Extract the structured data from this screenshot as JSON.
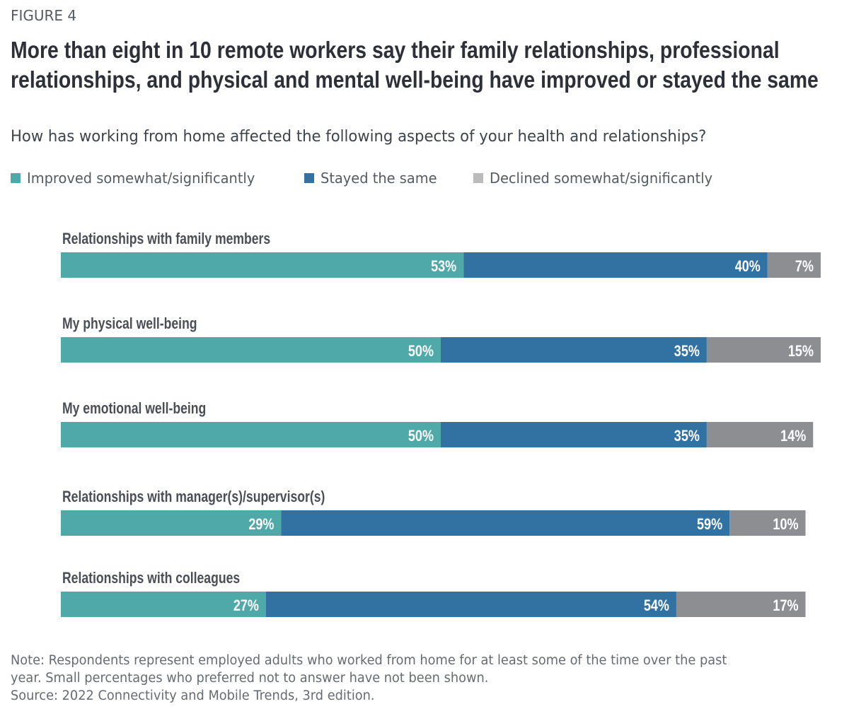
{
  "figure_label": "FIGURE 4",
  "title": "More than eight in 10 remote workers say their family relationships, professional relationships, and physical and mental well-being have improved or stayed the same",
  "subtitle": "How has working from home affected the following aspects of your health and relationships?",
  "legend": [
    {
      "label": "Improved somewhat/significantly",
      "color": "#4fa9a9"
    },
    {
      "label": "Stayed the same",
      "color": "#3272a2"
    },
    {
      "label": "Declined somewhat/significantly",
      "color": "#8c8e92"
    }
  ],
  "legend_swatch_colors": [
    "#4fa9a9",
    "#3272a2",
    "#bbbbbb"
  ],
  "chart_data": {
    "type": "bar",
    "orientation": "horizontal",
    "stacked": true,
    "categories": [
      "Relationships with family members",
      "My physical well-being",
      "My emotional well-being",
      "Relationships with manager(s)/supervisor(s)",
      "Relationships with colleagues"
    ],
    "series": [
      {
        "name": "Improved somewhat/significantly",
        "color": "#4fa9a9",
        "values": [
          53,
          50,
          50,
          29,
          27
        ]
      },
      {
        "name": "Stayed the same",
        "color": "#3272a2",
        "values": [
          40,
          35,
          35,
          59,
          54
        ]
      },
      {
        "name": "Declined somewhat/significantly",
        "color": "#8c8e92",
        "values": [
          7,
          15,
          14,
          10,
          17
        ]
      }
    ],
    "value_suffix": "%",
    "xlim": [
      0,
      100
    ],
    "grid": false,
    "legend_position": "top-left",
    "title": "More than eight in 10 remote workers say their family relationships, professional relationships, and physical and mental well-being have improved or stayed the same",
    "xlabel": "",
    "ylabel": ""
  },
  "notes": [
    "Note: Respondents represent employed adults who worked from home for at least some of the time over the past",
    "year. Small percentages who preferred not to answer have not been shown.",
    "Source: 2022 Connectivity and Mobile Trends, 3rd edition."
  ]
}
